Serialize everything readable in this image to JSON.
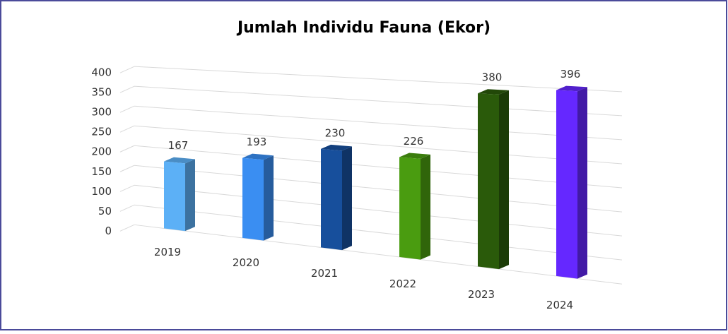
{
  "chart_data": {
    "type": "bar3d",
    "title": "Jumlah Individu Fauna (Ekor)",
    "categories": [
      "2019",
      "2020",
      "2021",
      "2022",
      "2023",
      "2024"
    ],
    "values": [
      167,
      193,
      230,
      226,
      380,
      396
    ],
    "colors": [
      "#5cb0f6",
      "#3a8ef2",
      "#174f9c",
      "#4a9c10",
      "#2a5a0a",
      "#6528ff"
    ],
    "ylim": [
      0,
      400
    ],
    "yticks": [
      0,
      50,
      100,
      150,
      200,
      250,
      300,
      350,
      400
    ],
    "grid": true
  }
}
